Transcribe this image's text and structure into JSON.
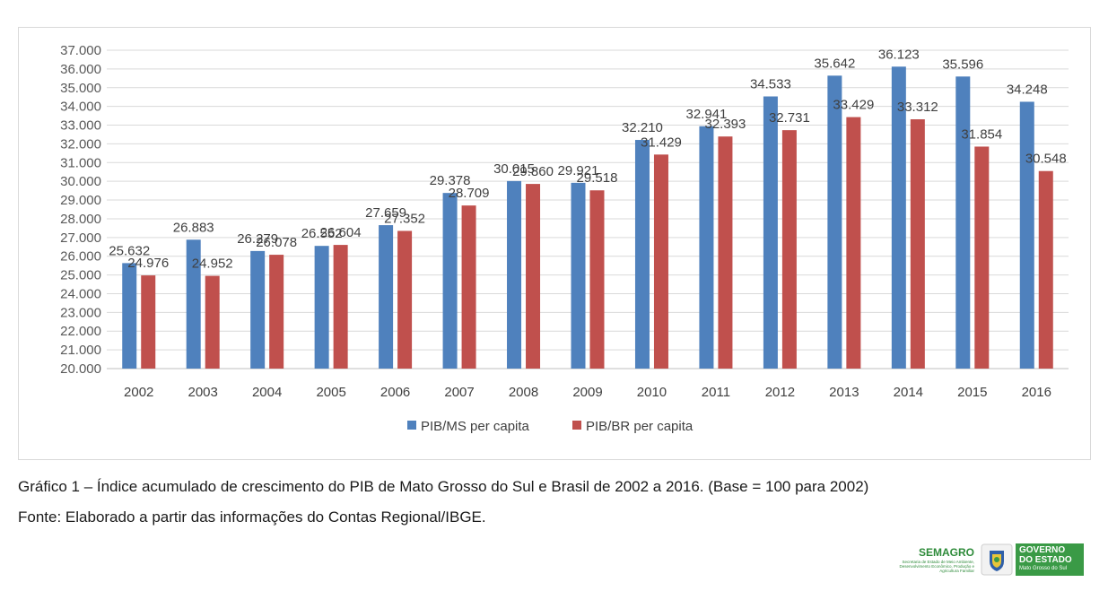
{
  "chart_data": {
    "type": "bar",
    "title": "",
    "xlabel": "",
    "ylabel": "",
    "categories": [
      "2002",
      "2003",
      "2004",
      "2005",
      "2006",
      "2007",
      "2008",
      "2009",
      "2010",
      "2011",
      "2012",
      "2013",
      "2014",
      "2015",
      "2016"
    ],
    "series": [
      {
        "name": "PIB/MS per capita",
        "color": "#4f81bd",
        "values": [
          25632,
          26883,
          26279,
          26552,
          27659,
          29378,
          30015,
          29921,
          32210,
          32941,
          34533,
          35642,
          36123,
          35596,
          34248
        ],
        "labels": [
          "25.632",
          "26.883",
          "26.279",
          "26.552",
          "27.659",
          "29.378",
          "30.015",
          "29.921",
          "32.210",
          "32.941",
          "34.533",
          "35.642",
          "36.123",
          "35.596",
          "34.248"
        ]
      },
      {
        "name": "PIB/BR per capita",
        "color": "#c0504d",
        "values": [
          24976,
          24952,
          26078,
          26604,
          27352,
          28709,
          29860,
          29518,
          31429,
          32393,
          32731,
          33429,
          33312,
          31854,
          30548
        ],
        "labels": [
          "24.976",
          "24.952",
          "26.078",
          "26.604",
          "27.352",
          "28.709",
          "29.860",
          "29.518",
          "31.429",
          "32.393",
          "32.731",
          "33.429",
          "33.312",
          "31.854",
          "30.548"
        ]
      }
    ],
    "ylim": [
      20000,
      37000
    ],
    "ytick_labels": [
      "20.000",
      "21.000",
      "22.000",
      "23.000",
      "24.000",
      "25.000",
      "26.000",
      "27.000",
      "28.000",
      "29.000",
      "30.000",
      "31.000",
      "32.000",
      "33.000",
      "34.000",
      "35.000",
      "36.000",
      "37.000"
    ],
    "grid": true,
    "legend_position": "bottom"
  },
  "caption": {
    "line1": "Gráfico 1 – Índice acumulado de crescimento do PIB de Mato Grosso do Sul e Brasil de 2002 a 2016. (Base = 100 para 2002)",
    "line2": "Fonte: Elaborado a partir das informações do Contas Regional/IBGE."
  },
  "logos": {
    "semagro_name": "SEMAGRO",
    "semagro_desc": "Secretaria de Estado de Meio Ambiente, Desenvolvimento Econômico, Produção e Agricultura Familiar",
    "gov_line1": "GOVERNO",
    "gov_line2": "DO ESTADO",
    "gov_line3": "Mato Grosso do Sul"
  }
}
